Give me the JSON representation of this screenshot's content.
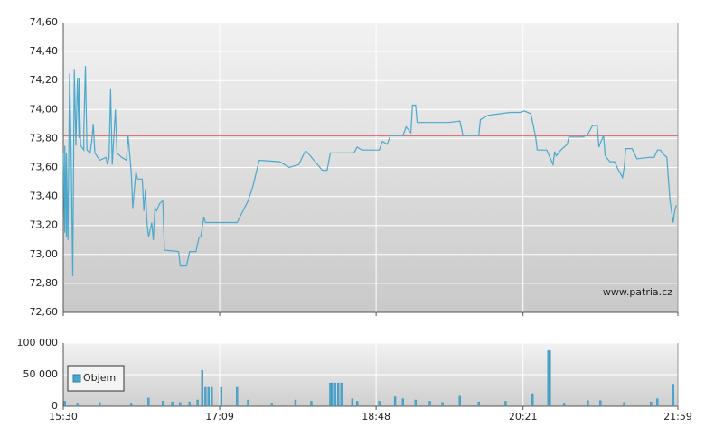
{
  "chart_data": [
    {
      "type": "line",
      "color": "#4aa8cc",
      "reference_line": 73.82,
      "reference_color": "#d9534f",
      "watermark": "www.patria.cz",
      "grid": true,
      "ylim": [
        72.6,
        74.6
      ],
      "yticks": [
        {
          "value": 72.6,
          "label": "72,60"
        },
        {
          "value": 72.8,
          "label": "72,80"
        },
        {
          "value": 73.0,
          "label": "73,00"
        },
        {
          "value": 73.2,
          "label": "73,20"
        },
        {
          "value": 73.4,
          "label": "73,40"
        },
        {
          "value": 73.6,
          "label": "73,60"
        },
        {
          "value": 73.8,
          "label": "73,80"
        },
        {
          "value": 74.0,
          "label": "74,00"
        },
        {
          "value": 74.2,
          "label": "74,20"
        },
        {
          "value": 74.4,
          "label": "74,40"
        },
        {
          "value": 74.6,
          "label": "74,60"
        }
      ],
      "xlim": [
        "15:30",
        "21:59"
      ],
      "x": [
        "15:30",
        "15:31",
        "15:31",
        "15:32",
        "15:32",
        "15:33",
        "15:34",
        "15:35",
        "15:36",
        "15:37",
        "15:38",
        "15:39",
        "15:40",
        "15:40",
        "15:41",
        "15:43",
        "15:43",
        "15:44",
        "15:45",
        "15:47",
        "15:48",
        "15:49",
        "15:50",
        "15:53",
        "15:57",
        "15:58",
        "15:59",
        "16:00",
        "16:01",
        "16:03",
        "16:04",
        "16:07",
        "16:10",
        "16:11",
        "16:13",
        "16:14",
        "16:16",
        "16:17",
        "16:20",
        "16:21",
        "16:22",
        "16:23",
        "16:24",
        "16:26",
        "16:27",
        "16:28",
        "16:29",
        "16:31",
        "16:33",
        "16:34",
        "16:43",
        "16:44",
        "16:48",
        "16:50",
        "16:54",
        "16:56",
        "16:57",
        "16:59",
        "17:00",
        "17:20",
        "17:27",
        "17:30",
        "17:34",
        "17:47",
        "17:53",
        "17:59",
        "18:03",
        "18:04",
        "18:14",
        "18:17",
        "18:19",
        "18:34",
        "18:36",
        "18:39",
        "18:50",
        "18:52",
        "18:55",
        "18:57",
        "19:05",
        "19:07",
        "19:10",
        "19:11",
        "19:13",
        "19:14",
        "19:34",
        "19:41",
        "19:43",
        "19:53",
        "19:54",
        "19:59",
        "20:13",
        "20:19",
        "20:22",
        "20:26",
        "20:29",
        "20:30",
        "20:33",
        "20:36",
        "20:38",
        "20:40",
        "20:41",
        "20:42",
        "20:45",
        "20:49",
        "20:50",
        "20:59",
        "21:02",
        "21:05",
        "21:08",
        "21:09",
        "21:10",
        "21:12",
        "21:13",
        "21:16",
        "21:19",
        "21:21",
        "21:24",
        "21:25",
        "21:26",
        "21:30",
        "21:33",
        "21:41",
        "21:44",
        "21:46",
        "21:48",
        "21:49",
        "21:52",
        "21:53",
        "21:54",
        "21:56",
        "21:57",
        "21:58"
      ],
      "values": [
        73.7,
        73.15,
        73.75,
        73.12,
        73.7,
        73.1,
        74.25,
        73.7,
        72.85,
        74.28,
        73.75,
        74.22,
        73.8,
        74.22,
        73.75,
        73.72,
        73.85,
        74.3,
        73.72,
        73.7,
        73.78,
        73.9,
        73.7,
        73.65,
        73.67,
        73.62,
        73.67,
        74.14,
        73.62,
        74.0,
        73.7,
        73.67,
        73.65,
        73.82,
        73.57,
        73.32,
        73.57,
        73.52,
        73.52,
        73.3,
        73.45,
        73.22,
        73.12,
        73.22,
        73.1,
        73.32,
        73.3,
        73.35,
        73.37,
        73.03,
        73.02,
        72.92,
        72.92,
        73.02,
        73.02,
        73.12,
        73.12,
        73.26,
        73.22,
        73.22,
        73.37,
        73.47,
        73.65,
        73.64,
        73.6,
        73.62,
        73.71,
        73.71,
        73.58,
        73.58,
        73.7,
        73.7,
        73.74,
        73.72,
        73.72,
        73.78,
        73.76,
        73.82,
        73.82,
        73.88,
        73.84,
        74.03,
        74.03,
        73.91,
        73.91,
        73.92,
        73.82,
        73.82,
        73.93,
        73.96,
        73.98,
        73.98,
        73.99,
        73.97,
        73.81,
        73.72,
        73.72,
        73.72,
        73.67,
        73.62,
        73.71,
        73.68,
        73.72,
        73.76,
        73.81,
        73.81,
        73.83,
        73.89,
        73.89,
        73.74,
        73.77,
        73.82,
        73.68,
        73.64,
        73.64,
        73.59,
        73.53,
        73.6,
        73.73,
        73.73,
        73.66,
        73.67,
        73.67,
        73.72,
        73.72,
        73.7,
        73.67,
        73.52,
        73.37,
        73.22,
        73.3,
        73.34
      ]
    },
    {
      "type": "bar",
      "grid": true,
      "legend": "top-left",
      "ylim": [
        0,
        100000
      ],
      "yticks": [
        0,
        {
          "value": 50000,
          "label": "50 000"
        },
        {
          "value": 100000,
          "label": "100 000"
        }
      ],
      "xlim": [
        "15:30",
        "21:59"
      ],
      "xticks": [
        "15:30",
        "17:09",
        "18:48",
        "20:21",
        "21:59"
      ],
      "series": [
        {
          "name": "Objem",
          "color": "#4ba6cf",
          "x": [
            "15:31",
            "15:39",
            "15:53",
            "16:13",
            "16:24",
            "16:33",
            "16:39",
            "16:44",
            "16:50",
            "16:55",
            "16:58",
            "17:00",
            "17:02",
            "17:04",
            "17:10",
            "17:20",
            "17:27",
            "17:42",
            "17:57",
            "18:07",
            "18:19",
            "18:20",
            "18:22",
            "18:24",
            "18:26",
            "18:33",
            "18:36",
            "18:50",
            "19:00",
            "19:05",
            "19:13",
            "19:22",
            "19:30",
            "19:41",
            "19:53",
            "20:10",
            "20:27",
            "20:37",
            "20:38",
            "20:47",
            "21:02",
            "21:10",
            "21:25",
            "21:42",
            "21:46",
            "21:56"
          ],
          "values": [
            8000,
            5000,
            6000,
            5000,
            13000,
            8000,
            7000,
            6000,
            7000,
            10000,
            57000,
            30000,
            30000,
            30000,
            30000,
            30000,
            10000,
            5000,
            10000,
            8000,
            37000,
            37000,
            37000,
            37000,
            37000,
            12000,
            8000,
            8000,
            15000,
            12000,
            10000,
            8000,
            6000,
            16000,
            7000,
            8000,
            20000,
            88000,
            88000,
            5000,
            9000,
            9000,
            6000,
            7000,
            12000,
            35000
          ]
        }
      ]
    }
  ]
}
